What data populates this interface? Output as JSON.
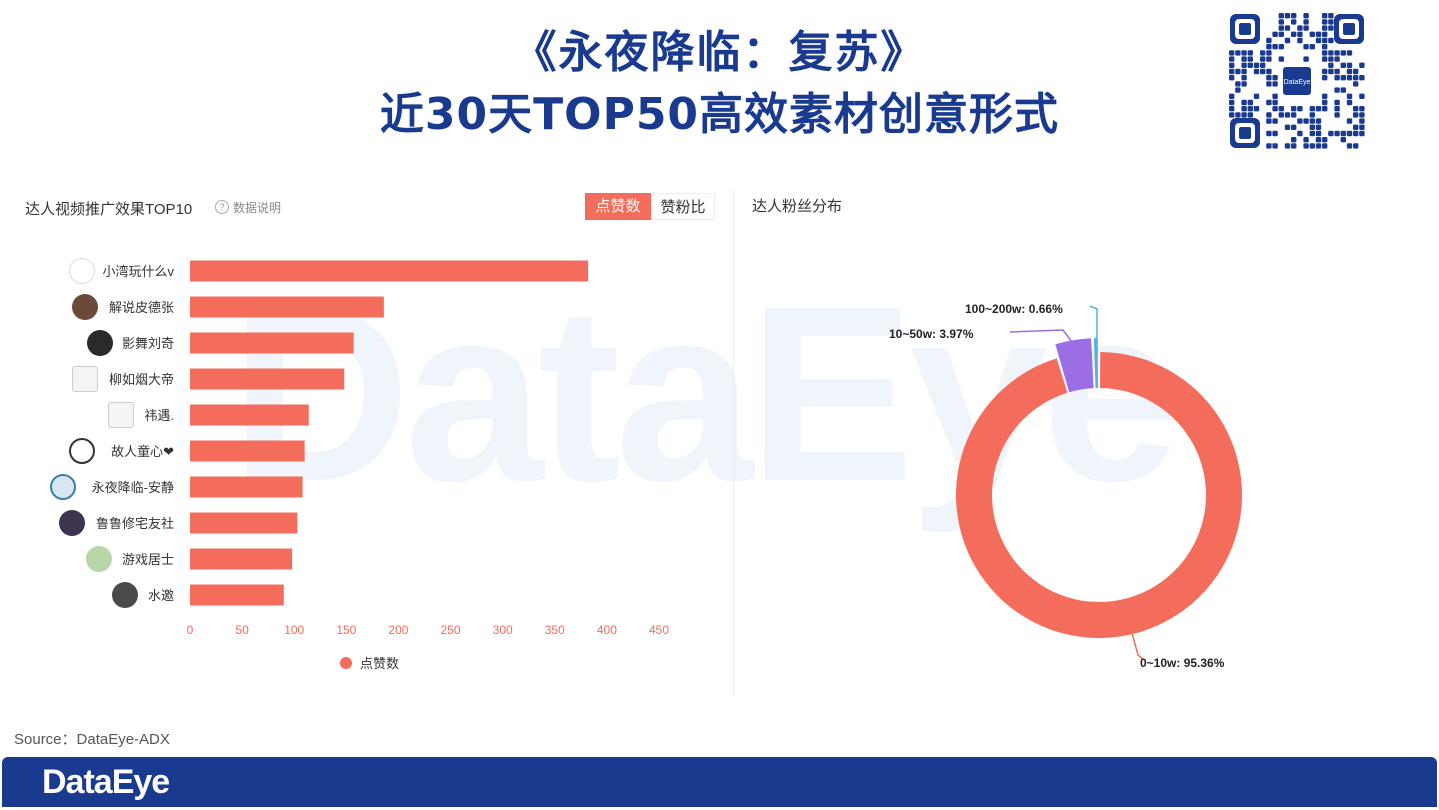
{
  "header": {
    "title_line1": "《永夜降临：复苏》",
    "title_line2": "近30天TOP50高效素材创意形式"
  },
  "qr": {
    "label": "DataEye"
  },
  "watermark": "DataEye",
  "left_panel": {
    "title": "达人视频推广效果TOP10",
    "help_text": "数据说明",
    "tabs": [
      "点赞数",
      "赞粉比"
    ],
    "active_tab": "点赞数",
    "legend_label": "点赞数"
  },
  "right_panel": {
    "title": "达人粉丝分布"
  },
  "colors": {
    "title": "#1a3a8f",
    "bar": "#f36c5c",
    "accent": "#f36c5c",
    "slice_0_10w": "#f36c5c",
    "slice_10_50w": "#9b6ee6",
    "slice_100_200w": "#4fb3e0",
    "footer": "#1a3a8f"
  },
  "chart_data": [
    {
      "type": "bar",
      "orientation": "horizontal",
      "title": "达人视频推广效果TOP10",
      "categories": [
        "小湾玩什么v",
        "解说皮德张",
        "影舞刘奇",
        "柳如烟大帝",
        "祎遇.",
        "故人童心❤",
        "永夜降临-安静",
        "鲁鲁修宅友社",
        "游戏居士",
        "水邀"
      ],
      "series": [
        {
          "name": "点赞数",
          "values": [
            382,
            186,
            157,
            148,
            114,
            110,
            108,
            103,
            98,
            90
          ]
        }
      ],
      "x_ticks": [
        0,
        50,
        100,
        150,
        200,
        250,
        300,
        350,
        400,
        450
      ],
      "xlim": [
        0,
        450
      ],
      "legend": "bottom",
      "grid": false
    },
    {
      "type": "pie",
      "variant": "donut",
      "title": "达人粉丝分布",
      "slices": [
        {
          "label": "0~10w",
          "value": 95.36,
          "display": "0~10w: 95.36%"
        },
        {
          "label": "10~50w",
          "value": 3.97,
          "display": "10~50w: 3.97%"
        },
        {
          "label": "100~200w",
          "value": 0.66,
          "display": "100~200w: 0.66%"
        }
      ]
    }
  ],
  "footer": {
    "source": "Source：DataEye-ADX",
    "logo": "DataEye"
  }
}
